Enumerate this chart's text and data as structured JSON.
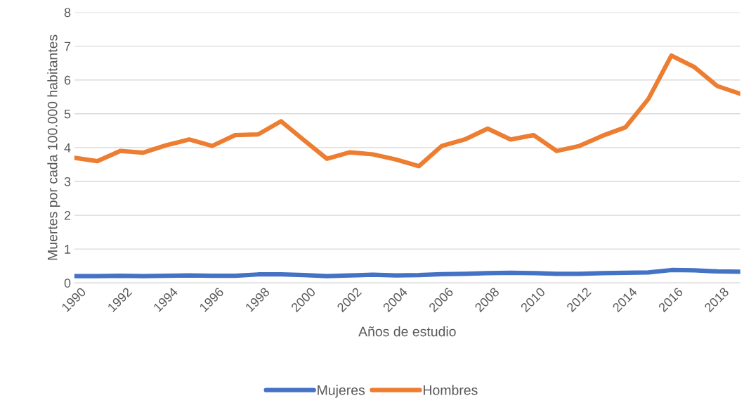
{
  "chart_data": {
    "type": "line",
    "xlabel": "Años de estudio",
    "ylabel": "Muertes por cada 100.000 habitantes",
    "x": [
      1990,
      1991,
      1992,
      1993,
      1994,
      1995,
      1996,
      1997,
      1998,
      1999,
      2000,
      2001,
      2002,
      2003,
      2004,
      2005,
      2006,
      2007,
      2008,
      2009,
      2010,
      2011,
      2012,
      2013,
      2014,
      2015,
      2016,
      2017,
      2018,
      2019
    ],
    "series": [
      {
        "name": "Mujeres",
        "color": "#4472c4",
        "values": [
          0.2,
          0.2,
          0.21,
          0.2,
          0.21,
          0.22,
          0.21,
          0.21,
          0.25,
          0.25,
          0.23,
          0.2,
          0.22,
          0.24,
          0.22,
          0.23,
          0.26,
          0.27,
          0.29,
          0.3,
          0.29,
          0.27,
          0.27,
          0.29,
          0.3,
          0.31,
          0.38,
          0.37,
          0.34,
          0.33
        ]
      },
      {
        "name": "Hombres",
        "color": "#ed7d31",
        "values": [
          3.7,
          3.6,
          3.9,
          3.85,
          4.07,
          4.24,
          4.05,
          4.37,
          4.39,
          4.78,
          4.22,
          3.67,
          3.86,
          3.8,
          3.65,
          3.45,
          4.05,
          4.24,
          4.56,
          4.24,
          4.37,
          3.9,
          4.05,
          4.35,
          4.6,
          5.44,
          6.72,
          6.38,
          5.82,
          5.59
        ]
      }
    ],
    "xlim": [
      1990,
      2019
    ],
    "xticks": [
      1990,
      1992,
      1994,
      1996,
      1998,
      2000,
      2002,
      2004,
      2006,
      2008,
      2010,
      2012,
      2014,
      2016,
      2018
    ],
    "ylim": [
      0,
      8
    ],
    "yticks": [
      0,
      1,
      2,
      3,
      4,
      5,
      6,
      7,
      8
    ],
    "grid": "y",
    "legend": "bottom",
    "marker": "none",
    "line_style": "solid"
  }
}
